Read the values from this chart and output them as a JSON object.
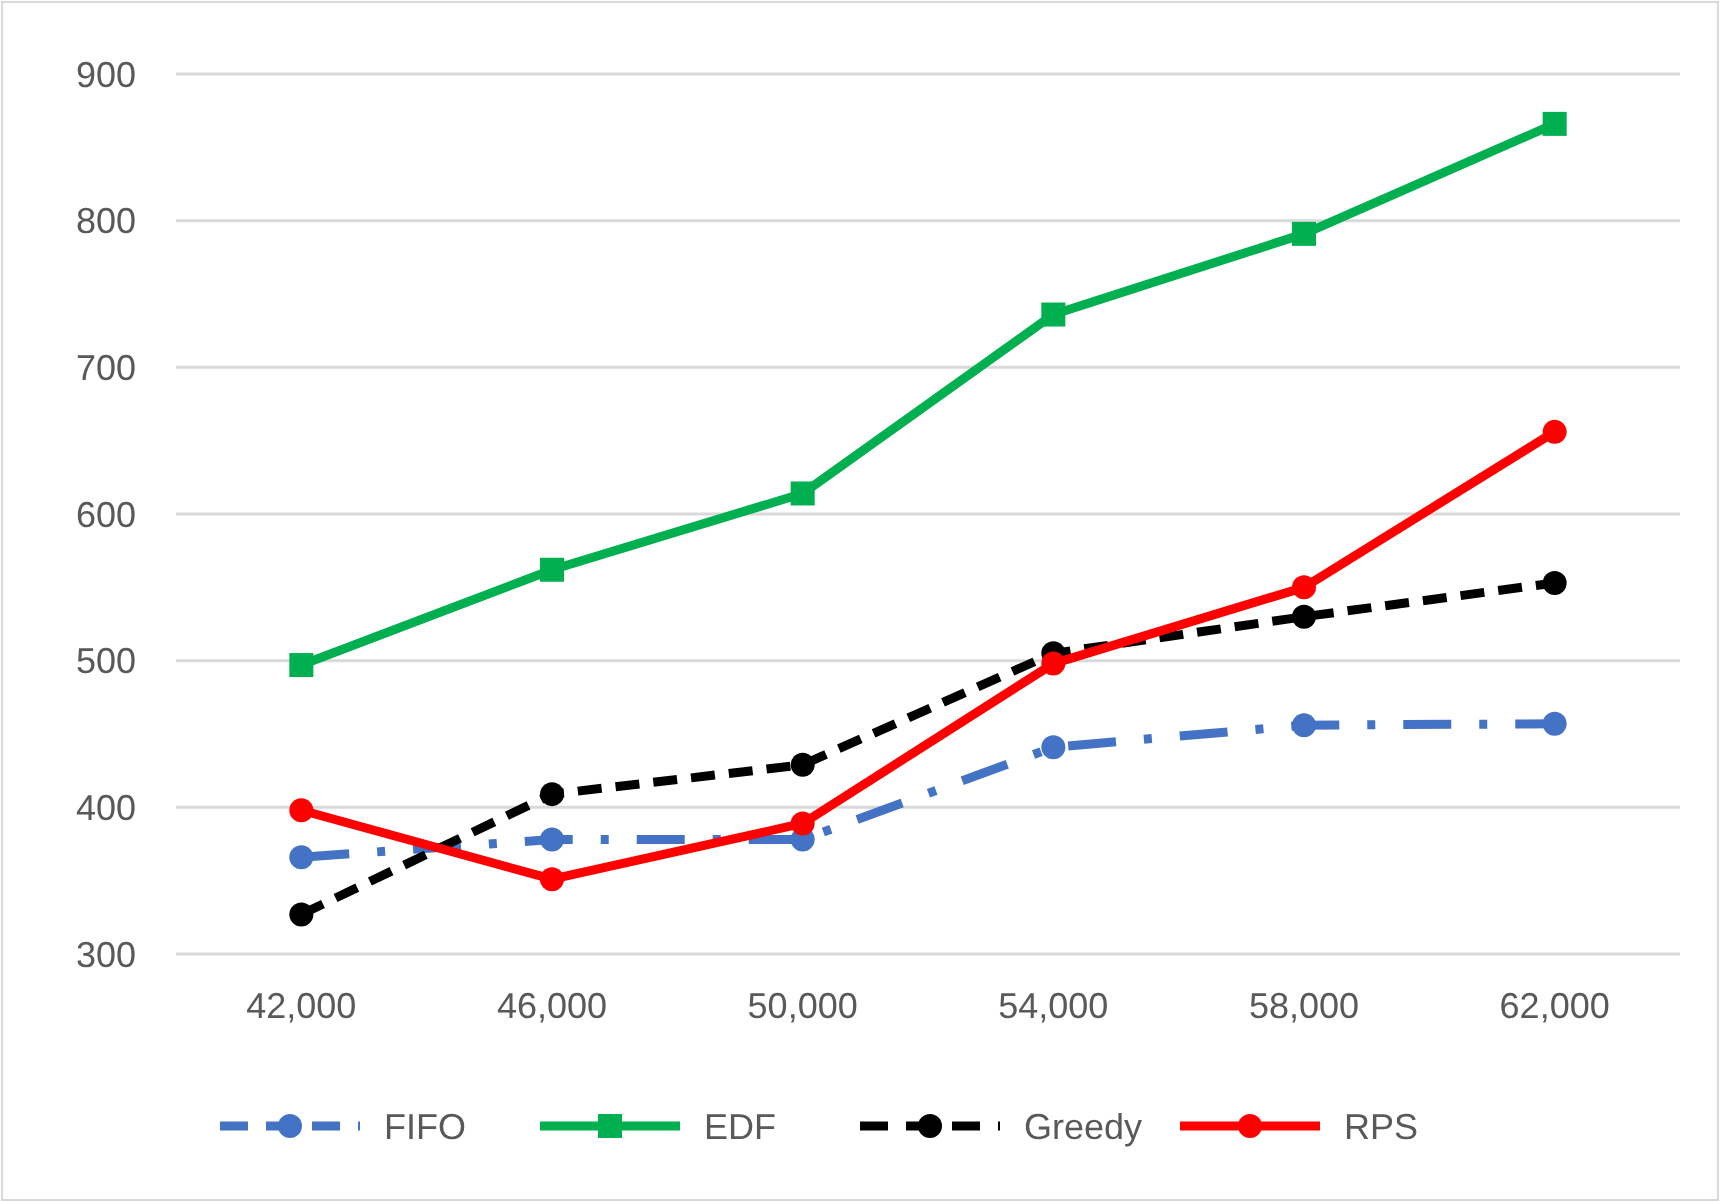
{
  "chart_data": {
    "type": "line",
    "categories": [
      "42,000",
      "46,000",
      "50,000",
      "54,000",
      "58,000",
      "62,000"
    ],
    "series": [
      {
        "name": "FIFO",
        "color": "#4472c4",
        "marker": "circle",
        "line_style": "dashdot",
        "values": [
          366,
          378,
          378,
          441,
          456,
          457
        ]
      },
      {
        "name": "EDF",
        "color": "#00b050",
        "marker": "square",
        "line_style": "solid",
        "values": [
          497,
          562,
          614,
          736,
          791,
          866
        ]
      },
      {
        "name": "Greedy",
        "color": "#000000",
        "marker": "circle",
        "line_style": "dashed",
        "values": [
          327,
          409,
          429,
          505,
          530,
          553
        ]
      },
      {
        "name": "RPS",
        "color": "#ff0000",
        "marker": "circle",
        "line_style": "solid",
        "values": [
          398,
          351,
          389,
          498,
          550,
          656
        ]
      }
    ],
    "ylim": [
      300,
      900
    ],
    "yticks": [
      300,
      400,
      500,
      600,
      700,
      800,
      900
    ],
    "grid": "y",
    "legend": "bottom"
  }
}
